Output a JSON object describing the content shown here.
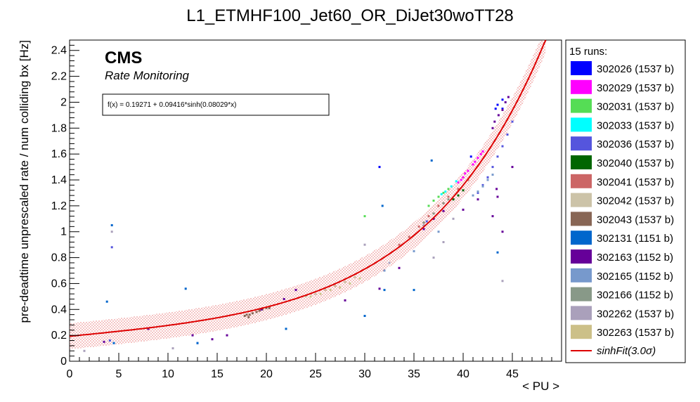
{
  "chart_data": {
    "type": "scatter",
    "title": "L1_ETMHF100_Jet60_OR_DiJet30woTT28",
    "xlabel": "< PU >",
    "ylabel": "pre-deadtime unprescaled rate / num colliding bx [Hz]",
    "xlim": [
      0,
      50
    ],
    "ylim": [
      0,
      2.48
    ],
    "x_ticks": [
      "0",
      "5",
      "10",
      "15",
      "20",
      "25",
      "30",
      "35",
      "40",
      "45"
    ],
    "y_ticks": [
      "0",
      "0.2",
      "0.4",
      "0.6",
      "0.8",
      "1",
      "1.2",
      "1.4",
      "1.6",
      "1.8",
      "2",
      "2.2",
      "2.4"
    ],
    "grid": false,
    "legend_position": "right",
    "legend_title": "15 runs:",
    "experiment_label": "CMS",
    "experiment_sublabel": "Rate Monitoring",
    "fit": {
      "formula": "f(x) = 0.19271 + 0.09416*sinh(0.08029*x)",
      "a": 0.19271,
      "b": 0.09416,
      "c": 0.08029,
      "band_half_width": 0.1,
      "legend_label": "sinhFit(3.0σ)",
      "color": "#dd0000"
    },
    "series": [
      {
        "name": "302026 (1537 b)",
        "color": "#0000ff",
        "points": [
          [
            43.3,
            1.95
          ],
          [
            44.0,
            2.02
          ],
          [
            40.8,
            1.58
          ],
          [
            31.5,
            1.5
          ],
          [
            44.0,
            1.95
          ],
          [
            43.5,
            1.98
          ]
        ]
      },
      {
        "name": "302029 (1537 b)",
        "color": "#ff00ff",
        "points": [
          [
            39.5,
            1.38
          ],
          [
            40.0,
            1.42
          ],
          [
            40.5,
            1.47
          ],
          [
            41.0,
            1.52
          ],
          [
            41.5,
            1.57
          ],
          [
            42.0,
            1.62
          ],
          [
            40.2,
            1.45
          ],
          [
            41.2,
            1.54
          ],
          [
            41.8,
            1.6
          ],
          [
            39.8,
            1.4
          ]
        ]
      },
      {
        "name": "302031 (1537 b)",
        "color": "#55dd55",
        "points": [
          [
            37.5,
            1.27
          ],
          [
            38.0,
            1.3
          ],
          [
            38.5,
            1.33
          ],
          [
            36.5,
            1.2
          ],
          [
            37.0,
            1.24
          ],
          [
            30.0,
            1.12
          ]
        ]
      },
      {
        "name": "302033 (1537 b)",
        "color": "#00ffff",
        "points": [
          [
            38.2,
            1.31
          ],
          [
            38.8,
            1.35
          ],
          [
            39.3,
            1.39
          ],
          [
            37.8,
            1.29
          ]
        ]
      },
      {
        "name": "302036 (1537 b)",
        "color": "#5555dd",
        "points": [
          [
            4.1,
            0.16
          ],
          [
            4.3,
            0.88
          ],
          [
            13.0,
            0.14
          ],
          [
            41.5,
            1.3
          ],
          [
            42.0,
            1.36
          ],
          [
            42.5,
            1.42
          ],
          [
            43.0,
            1.5
          ],
          [
            43.5,
            1.58
          ],
          [
            44.0,
            1.66
          ],
          [
            44.5,
            1.75
          ],
          [
            45.0,
            1.85
          ],
          [
            36.3,
            1.08
          ]
        ]
      },
      {
        "name": "302040 (1537 b)",
        "color": "#006600",
        "points": [
          [
            39.0,
            1.25
          ],
          [
            39.5,
            1.28
          ],
          [
            40.0,
            1.32
          ]
        ]
      },
      {
        "name": "302041 (1537 b)",
        "color": "#cc6666",
        "points": [
          [
            33.5,
            0.9
          ],
          [
            34.5,
            0.96
          ],
          [
            35.5,
            1.04
          ],
          [
            36.5,
            1.12
          ],
          [
            37.5,
            1.2
          ],
          [
            38.5,
            1.27
          ],
          [
            39.5,
            1.33
          ],
          [
            40.5,
            1.4
          ]
        ]
      },
      {
        "name": "302042 (1537 b)",
        "color": "#ccc3a8",
        "points": [
          [
            24.0,
            0.5
          ],
          [
            25.0,
            0.52
          ],
          [
            26.0,
            0.55
          ],
          [
            27.0,
            0.58
          ],
          [
            28.0,
            0.61
          ],
          [
            29.0,
            0.65
          ]
        ]
      },
      {
        "name": "302043 (1537 b)",
        "color": "#886655",
        "points": [
          [
            17.8,
            0.35
          ],
          [
            18.0,
            0.36
          ],
          [
            18.3,
            0.36
          ],
          [
            18.6,
            0.37
          ],
          [
            19.0,
            0.38
          ],
          [
            19.3,
            0.39
          ],
          [
            19.6,
            0.4
          ],
          [
            20.0,
            0.41
          ],
          [
            20.3,
            0.41
          ],
          [
            18.2,
            0.34
          ]
        ]
      },
      {
        "name": "302131 (1151 b)",
        "color": "#0066cc",
        "points": [
          [
            4.3,
            1.05
          ],
          [
            3.8,
            0.46
          ],
          [
            4.5,
            0.14
          ],
          [
            13.0,
            0.14
          ],
          [
            22.0,
            0.25
          ],
          [
            30.0,
            0.35
          ],
          [
            32.0,
            0.55
          ],
          [
            31.8,
            1.2
          ],
          [
            35.0,
            0.55
          ],
          [
            36.8,
            1.55
          ],
          [
            43.5,
            0.84
          ],
          [
            11.8,
            0.56
          ]
        ]
      },
      {
        "name": "302163 (1152 b)",
        "color": "#660099",
        "points": [
          [
            3.5,
            0.15
          ],
          [
            8.0,
            0.25
          ],
          [
            12.5,
            0.2
          ],
          [
            14.5,
            0.17
          ],
          [
            16.0,
            0.2
          ],
          [
            19.5,
            0.4
          ],
          [
            21.8,
            0.48
          ],
          [
            23.0,
            0.55
          ],
          [
            28.0,
            0.47
          ],
          [
            31.5,
            0.56
          ],
          [
            33.5,
            0.72
          ],
          [
            36.0,
            1.02
          ],
          [
            37.0,
            1.1
          ],
          [
            38.0,
            1.16
          ],
          [
            40.0,
            1.17
          ],
          [
            43.0,
            1.8
          ],
          [
            43.2,
            1.85
          ],
          [
            43.6,
            1.9
          ],
          [
            44.0,
            1.94
          ],
          [
            44.3,
            2.0
          ],
          [
            44.6,
            2.04
          ],
          [
            43.5,
            1.27
          ],
          [
            41.5,
            1.25
          ],
          [
            43.0,
            1.12
          ],
          [
            44.0,
            1.0
          ],
          [
            45.0,
            1.5
          ],
          [
            43.4,
            1.33
          ]
        ]
      },
      {
        "name": "302165 (1152 b)",
        "color": "#7799cc",
        "points": [
          [
            41.0,
            1.28
          ],
          [
            41.5,
            1.31
          ],
          [
            42.0,
            1.35
          ],
          [
            42.5,
            1.4
          ],
          [
            43.0,
            1.44
          ],
          [
            37.5,
            1.0
          ],
          [
            35.0,
            0.85
          ],
          [
            32.0,
            0.7
          ]
        ]
      },
      {
        "name": "302166 (1152 b)",
        "color": "#889988",
        "points": [
          [
            38.0,
            1.22
          ],
          [
            38.5,
            1.25
          ],
          [
            37.0,
            1.14
          ],
          [
            36.0,
            1.07
          ]
        ]
      },
      {
        "name": "302262 (1537 b)",
        "color": "#aaa0bb",
        "points": [
          [
            4.3,
            1.0
          ],
          [
            30.0,
            0.9
          ],
          [
            36.0,
            1.05
          ],
          [
            38.0,
            0.92
          ],
          [
            39.0,
            1.1
          ],
          [
            37.0,
            0.8
          ],
          [
            32.5,
            0.76
          ],
          [
            44.0,
            0.62
          ],
          [
            10.5,
            0.1
          ],
          [
            1.5,
            0.08
          ]
        ]
      },
      {
        "name": "302263 (1537 b)",
        "color": "#ccc088",
        "points": [
          [
            24.5,
            0.5
          ],
          [
            25.5,
            0.52
          ],
          [
            26.5,
            0.55
          ],
          [
            27.5,
            0.57
          ],
          [
            28.5,
            0.6
          ],
          [
            29.5,
            0.64
          ]
        ]
      }
    ]
  }
}
